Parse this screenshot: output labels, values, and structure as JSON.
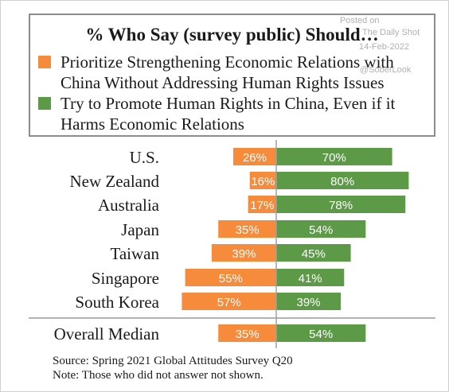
{
  "watermark": {
    "posted": "Posted on",
    "site": "The Daily Shot",
    "date": "14-Feb-2022",
    "handle": "@SoberLook"
  },
  "legend": {
    "title": "% Who Say (survey public) Should…",
    "items": [
      {
        "label": "Prioritize Strengthening Economic Relations with China Without Addressing Human Rights Issues",
        "color": "#f68b3c"
      },
      {
        "label": "Try to Promote Human Rights in China, Even if it Harms Economic Relations",
        "color": "#5d9a48"
      }
    ]
  },
  "chart_data": {
    "type": "bar",
    "orientation": "horizontal-diverging",
    "categories": [
      "U.S.",
      "New Zealand",
      "Australia",
      "Japan",
      "Taiwan",
      "Singapore",
      "South Korea"
    ],
    "series": [
      {
        "values": [
          26,
          16,
          17,
          35,
          39,
          55,
          57
        ],
        "labels": [
          "26%",
          "16%",
          "17%",
          "35%",
          "39%",
          "55%",
          "57%"
        ],
        "color": "#f68b3c",
        "direction": "left"
      },
      {
        "values": [
          70,
          80,
          78,
          54,
          45,
          41,
          39
        ],
        "labels": [
          "70%",
          "80%",
          "78%",
          "54%",
          "45%",
          "41%",
          "39%"
        ],
        "color": "#5d9a48",
        "direction": "right"
      }
    ],
    "summary": {
      "category": "Overall Median",
      "values": [
        35,
        54
      ],
      "labels": [
        "35%",
        "54%"
      ]
    }
  },
  "source": {
    "line1": "Source: Spring 2021 Global Attitudes Survey Q20",
    "line2": "Note: Those who did not answer not shown."
  }
}
